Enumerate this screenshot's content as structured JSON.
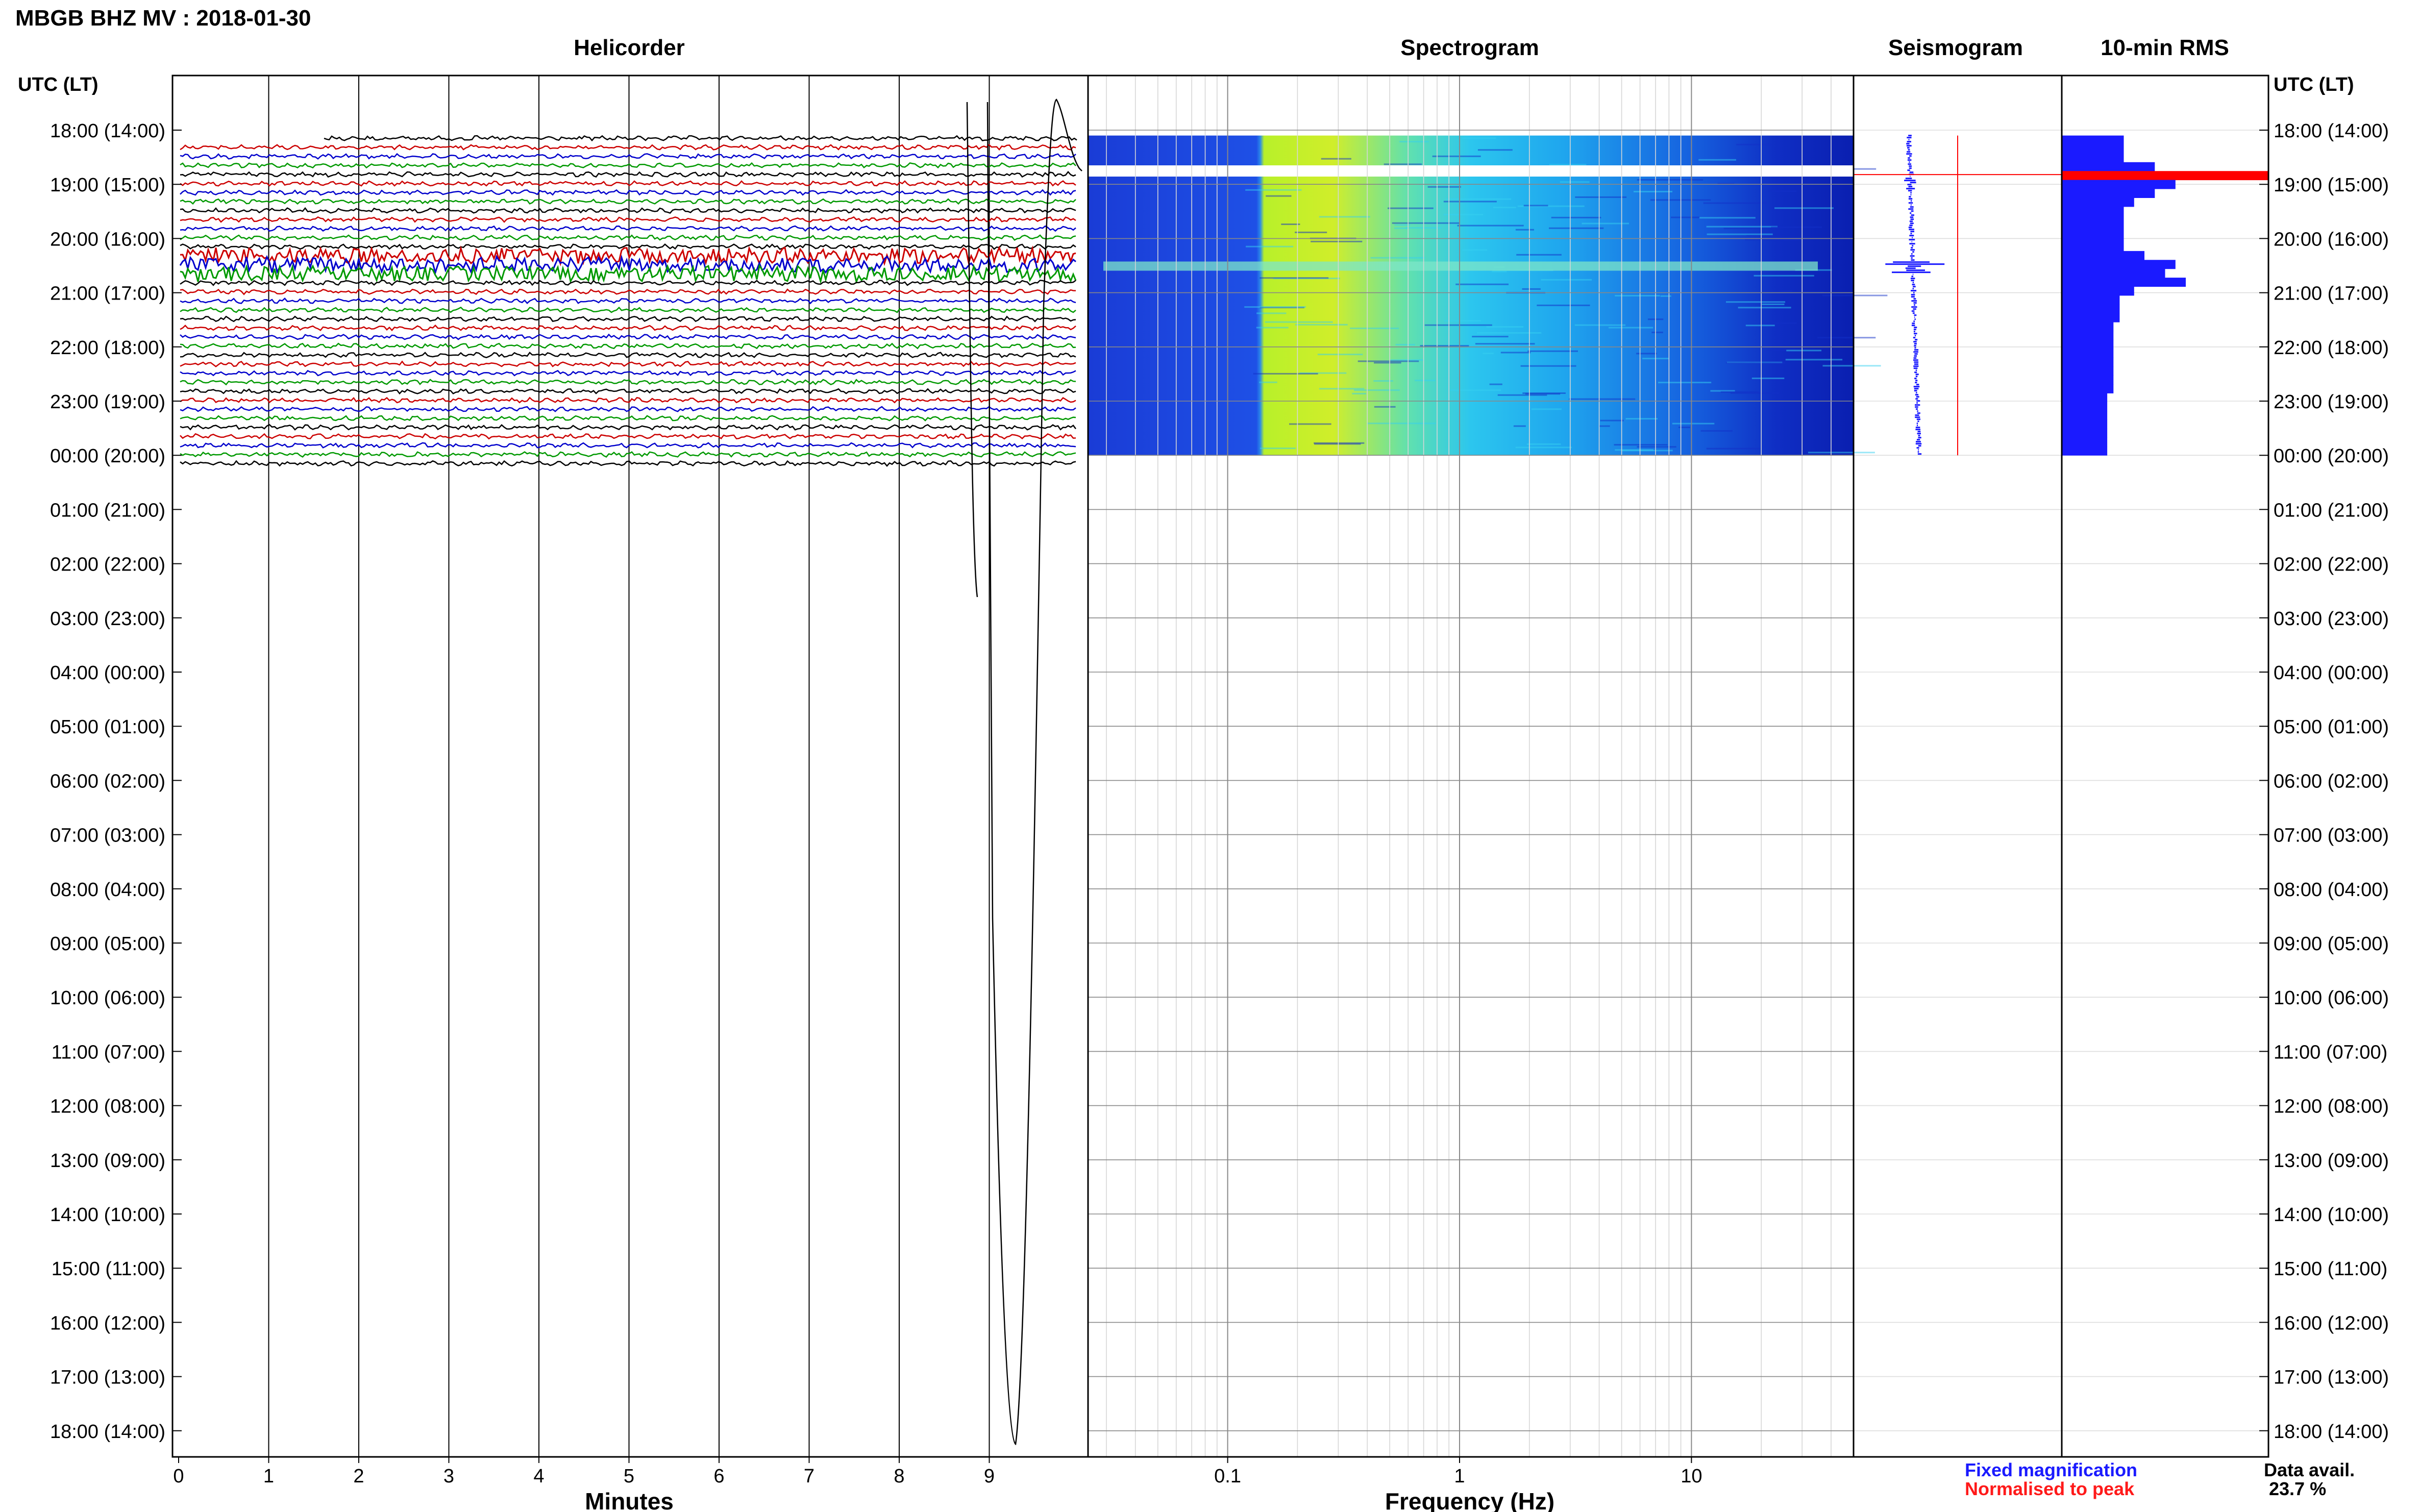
{
  "figure_title": "MBGB BHZ MV : 2018-01-30",
  "panels": {
    "helicorder": "Helicorder",
    "spectrogram": "Spectrogram",
    "seismogram": "Seismogram",
    "rms": "10-min RMS"
  },
  "axis": {
    "left_label": "UTC (LT)",
    "right_label": "UTC (LT)",
    "minutes_label": "Minutes",
    "frequency_label": "Frequency (Hz)"
  },
  "legend": {
    "fixed": "Fixed magnification",
    "normalised": "Normalised to peak",
    "fixed_color": "#1a1aff",
    "normalised_color": "#ff1a1a"
  },
  "data_availability": {
    "label": "Data avail.",
    "value": "23.7 %"
  },
  "chart_data": {
    "type": "helicorder",
    "time_ticks": [
      "18:00 (14:00)",
      "19:00 (15:00)",
      "20:00 (16:00)",
      "21:00 (17:00)",
      "22:00 (18:00)",
      "23:00 (19:00)",
      "00:00 (20:00)",
      "01:00 (21:00)",
      "02:00 (22:00)",
      "03:00 (23:00)",
      "04:00 (00:00)",
      "05:00 (01:00)",
      "06:00 (02:00)",
      "07:00 (03:00)",
      "08:00 (04:00)",
      "09:00 (05:00)",
      "10:00 (06:00)",
      "11:00 (07:00)",
      "12:00 (08:00)",
      "13:00 (09:00)",
      "14:00 (10:00)",
      "15:00 (11:00)",
      "16:00 (12:00)",
      "17:00 (13:00)",
      "18:00 (14:00)"
    ],
    "minute_ticks": [
      "0",
      "1",
      "2",
      "3",
      "4",
      "5",
      "6",
      "7",
      "8",
      "9"
    ],
    "freq_ticks": [
      "0.1",
      "1",
      "10"
    ],
    "freq_range_hz": [
      0.025,
      50
    ],
    "data_hours": [
      0,
      6
    ],
    "trace_colors": [
      "#000000",
      "#cc0000",
      "#0000cc",
      "#009900"
    ],
    "rms_bars": [
      0.3,
      0.3,
      0.3,
      0.45,
      1.0,
      0.55,
      0.45,
      0.35,
      0.3,
      0.3,
      0.3,
      0.3,
      0.3,
      0.4,
      0.55,
      0.5,
      0.6,
      0.35,
      0.28,
      0.28,
      0.28,
      0.25,
      0.25,
      0.25,
      0.25,
      0.25,
      0.25,
      0.25,
      0.25,
      0.22,
      0.22,
      0.22,
      0.22,
      0.22,
      0.22,
      0.22
    ],
    "rms_peak_color": "#ff0000",
    "rms_color": "#1a1aff"
  }
}
